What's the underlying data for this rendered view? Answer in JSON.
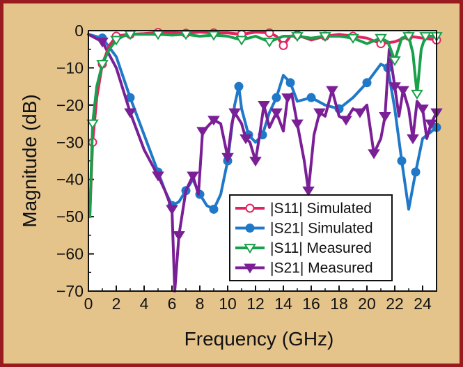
{
  "colors": {
    "frame_border": "#9a1b1f",
    "frame_background": "#e5c48c",
    "plot_background": "#ffffff",
    "s11_simulated": "#e0245e",
    "s21_simulated": "#1f78c8",
    "s11_measured": "#18a04a",
    "s21_measured": "#7a1f96"
  },
  "chart_data": {
    "type": "line",
    "title": "",
    "xlabel": "Frequency (GHz)",
    "ylabel": "Magnitude (dB)",
    "xlim": [
      0,
      25
    ],
    "ylim": [
      -70,
      0
    ],
    "xticks": [
      0,
      2,
      4,
      6,
      8,
      10,
      12,
      14,
      16,
      18,
      20,
      22,
      24
    ],
    "yticks": [
      0,
      -10,
      -20,
      -30,
      -40,
      -50,
      -60,
      -70
    ],
    "ytick_labels": [
      "0",
      "−10",
      "−20",
      "−30",
      "−40",
      "−50",
      "−60",
      "−70"
    ],
    "grid": false,
    "legend_position": "bottom-right",
    "series": [
      {
        "name": "|S11| Simulated",
        "marker": "open-circle",
        "color": "#e0245e",
        "x": [
          0.1,
          0.3,
          0.6,
          1.0,
          1.5,
          2.0,
          2.5,
          3,
          4,
          5,
          6,
          7,
          8,
          9,
          10,
          11,
          12,
          13,
          13.5,
          14,
          14.5,
          15,
          16,
          17,
          18,
          19,
          20,
          21,
          22,
          23,
          24,
          25
        ],
        "y": [
          -50,
          -30,
          -18,
          -9,
          -4,
          -1.5,
          -1.2,
          -1.0,
          -0.8,
          -0.5,
          -0.5,
          -0.7,
          -0.4,
          -0.6,
          -0.6,
          -1.0,
          -0.4,
          -0.6,
          -1.5,
          -4.0,
          -1.5,
          -1.2,
          -2.5,
          -1.5,
          -1.0,
          -1.5,
          -2.0,
          -3.5,
          -3.0,
          -1.5,
          -2.0,
          -2.5
        ]
      },
      {
        "name": "|S21| Simulated",
        "marker": "filled-circle",
        "color": "#1f78c8",
        "x": [
          0,
          1.0,
          2,
          3,
          4,
          5,
          5.5,
          6,
          6.5,
          7,
          7.5,
          8,
          8.5,
          9,
          9.5,
          10,
          10.5,
          10.8,
          11,
          11.5,
          12,
          12.5,
          13,
          13.5,
          14,
          14.5,
          15,
          16,
          17,
          18,
          19,
          20,
          21,
          21.5,
          22,
          22.5,
          23,
          23.5,
          24,
          25
        ],
        "y": [
          -1,
          -2,
          -7,
          -18,
          -28,
          -38,
          -43,
          -47,
          -46,
          -43,
          -40,
          -44,
          -47,
          -48,
          -44,
          -35,
          -20,
          -15,
          -21,
          -28,
          -30,
          -28,
          -22,
          -18,
          -12,
          -14,
          -19,
          -18,
          -20,
          -21,
          -18,
          -14,
          -9,
          -10,
          -21,
          -35,
          -48,
          -38,
          -29,
          -26
        ]
      },
      {
        "name": "|S11| Measured",
        "marker": "open-triangle-down",
        "color": "#18a04a",
        "x": [
          0.1,
          0.3,
          0.6,
          1.0,
          1.5,
          2.0,
          2.5,
          3,
          4,
          5,
          6,
          7,
          8,
          9,
          10,
          11,
          12,
          13,
          14,
          15,
          16,
          17,
          18,
          19,
          20,
          21,
          21.5,
          22,
          22.5,
          23,
          23.3,
          23.6,
          23.9,
          24.2,
          25
        ],
        "y": [
          -50,
          -25,
          -15,
          -9,
          -5,
          -2.5,
          -1.5,
          -1.0,
          -1.0,
          -1.0,
          -1.2,
          -1.0,
          -1.5,
          -1.2,
          -1.5,
          -2.5,
          -1.5,
          -3.0,
          -1.5,
          -1.5,
          -2.0,
          -1.5,
          -1.5,
          -2.0,
          -3.5,
          -2.0,
          -3.0,
          -8.0,
          -2.0,
          -1.5,
          -6.0,
          -17.0,
          -5.0,
          -1.5,
          -1.5
        ]
      },
      {
        "name": "|S21| Measured",
        "marker": "filled-triangle-down",
        "color": "#7a1f96",
        "x": [
          0,
          1.0,
          2,
          3,
          4,
          5,
          5.5,
          6,
          6.2,
          6.5,
          7,
          7.5,
          7.9,
          8.2,
          8.5,
          9,
          9.5,
          10,
          10.3,
          10.5,
          11,
          11.3,
          11.6,
          12,
          12.3,
          12.6,
          13,
          13.5,
          14,
          14.3,
          14.6,
          15,
          15.5,
          15.8,
          16.2,
          16.6,
          17,
          17.5,
          18,
          18.5,
          19,
          19.5,
          20,
          20.5,
          21,
          21.3,
          21.6,
          22,
          22.3,
          22.6,
          23,
          23.3,
          23.6,
          24,
          24.3,
          24.6,
          25
        ],
        "y": [
          -1,
          -3,
          -10,
          -22,
          -32,
          -39,
          -43,
          -48,
          -70,
          -55,
          -43,
          -39,
          -44,
          -27,
          -26,
          -24,
          -25,
          -34,
          -25,
          -22,
          -25,
          -29,
          -30,
          -35,
          -28,
          -20,
          -26,
          -22,
          -27,
          -18,
          -17,
          -25,
          -35,
          -43,
          -28,
          -22,
          -23,
          -16,
          -23,
          -24,
          -21,
          -22,
          -20,
          -33,
          -29,
          -23,
          -5,
          -15,
          -23,
          -16,
          -21,
          -29,
          -19,
          -21,
          -29,
          -25,
          -22
        ]
      }
    ]
  }
}
